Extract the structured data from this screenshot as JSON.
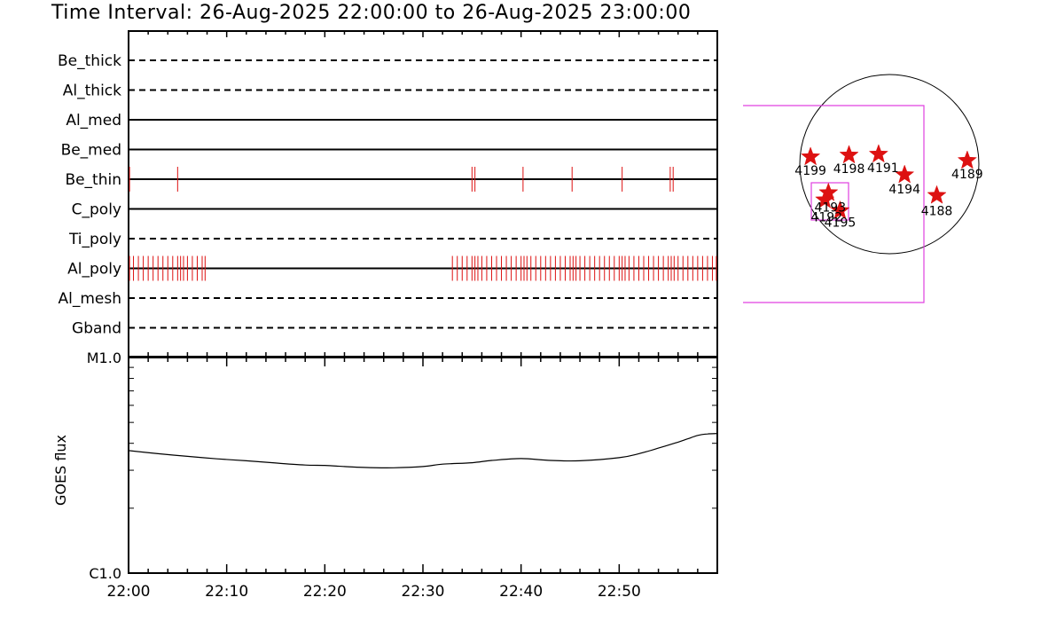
{
  "title": "Time Interval: 26-Aug-2025 22:00:00 to 26-Aug-2025 23:00:00",
  "colors": {
    "event": "#dd1111",
    "box": "#e040e0",
    "axis": "#000000"
  },
  "chart_data": [
    {
      "type": "timeline",
      "x_unit": "minutes after 22:00",
      "xlim": [
        0,
        60
      ],
      "channels": [
        {
          "name": "Be_thick",
          "line": "dashed",
          "events": []
        },
        {
          "name": "Al_thick",
          "line": "dashed",
          "events": []
        },
        {
          "name": "Al_med",
          "line": "solid",
          "events": []
        },
        {
          "name": "Be_med",
          "line": "solid",
          "events": []
        },
        {
          "name": "Be_thin",
          "line": "solid",
          "events": [
            0.1,
            5.0,
            35.0,
            35.3,
            40.2,
            45.2,
            50.3,
            55.2,
            55.5
          ]
        },
        {
          "name": "C_poly",
          "line": "solid",
          "events": []
        },
        {
          "name": "Ti_poly",
          "line": "dashed",
          "events": []
        },
        {
          "name": "Al_poly",
          "line": "solid",
          "events": [
            0.1,
            0.5,
            1.0,
            1.5,
            2.0,
            2.5,
            3.0,
            3.5,
            4.0,
            4.5,
            5.0,
            5.3,
            5.6,
            6.0,
            6.5,
            7.0,
            7.5,
            7.8,
            33.0,
            33.5,
            34.0,
            34.5,
            35.0,
            35.3,
            35.6,
            36.0,
            36.5,
            37.0,
            37.5,
            38.0,
            38.5,
            39.0,
            39.5,
            40.0,
            40.3,
            40.6,
            41.0,
            41.5,
            42.0,
            42.5,
            43.0,
            43.5,
            44.0,
            44.5,
            45.0,
            45.3,
            45.6,
            46.0,
            46.5,
            47.0,
            47.5,
            48.0,
            48.5,
            49.0,
            49.5,
            50.0,
            50.3,
            50.6,
            51.0,
            51.5,
            52.0,
            52.5,
            53.0,
            53.5,
            54.0,
            54.5,
            55.0,
            55.3,
            55.6,
            56.0,
            56.5,
            57.0,
            57.5,
            58.0,
            58.5,
            59.0,
            59.5,
            59.9
          ]
        },
        {
          "name": "Al_mesh",
          "line": "dashed",
          "events": []
        },
        {
          "name": "Gband",
          "line": "dashed",
          "events": []
        }
      ]
    },
    {
      "type": "line",
      "ylabel": "GOES flux",
      "ylim_labels": [
        "C1.0",
        "M1.0"
      ],
      "y_scale": "log",
      "ylim": [
        1e-06,
        1e-05
      ],
      "x_tick_labels": [
        "22:00",
        "22:10",
        "22:20",
        "22:30",
        "22:40",
        "22:50"
      ],
      "x_ticks": [
        0,
        10,
        20,
        30,
        40,
        50
      ],
      "x": [
        0,
        3,
        6,
        9,
        12,
        15,
        18,
        20,
        22,
        24,
        27,
        30,
        32,
        35,
        37,
        40,
        43,
        46,
        50,
        52,
        54,
        56,
        57,
        58,
        59,
        60
      ],
      "y": [
        3.7e-06,
        3.58e-06,
        3.48e-06,
        3.39e-06,
        3.32e-06,
        3.24e-06,
        3.17e-06,
        3.16e-06,
        3.12e-06,
        3.09e-06,
        3.08e-06,
        3.12e-06,
        3.2e-06,
        3.25e-06,
        3.33e-06,
        3.4e-06,
        3.33e-06,
        3.32e-06,
        3.43e-06,
        3.58e-06,
        3.8e-06,
        4.05e-06,
        4.2e-06,
        4.35e-06,
        4.42e-06,
        4.44e-06
      ]
    },
    {
      "type": "scatter",
      "xlim": [
        -1.2,
        1.2
      ],
      "ylim": [
        -1.2,
        1.2
      ],
      "points": [
        {
          "label": "4199",
          "x": -0.88,
          "y": 0.08
        },
        {
          "label": "4198",
          "x": -0.45,
          "y": 0.1
        },
        {
          "label": "4191",
          "x": -0.12,
          "y": 0.11
        },
        {
          "label": "4194",
          "x": 0.17,
          "y": -0.12
        },
        {
          "label": "4189",
          "x": 0.87,
          "y": 0.04
        },
        {
          "label": "4188",
          "x": 0.53,
          "y": -0.35
        },
        {
          "label": "4193",
          "x": -0.68,
          "y": -0.32
        },
        {
          "label": "4192",
          "x": -0.72,
          "y": -0.4
        },
        {
          "label": "4195",
          "x": -0.55,
          "y": -0.52
        }
      ]
    }
  ]
}
